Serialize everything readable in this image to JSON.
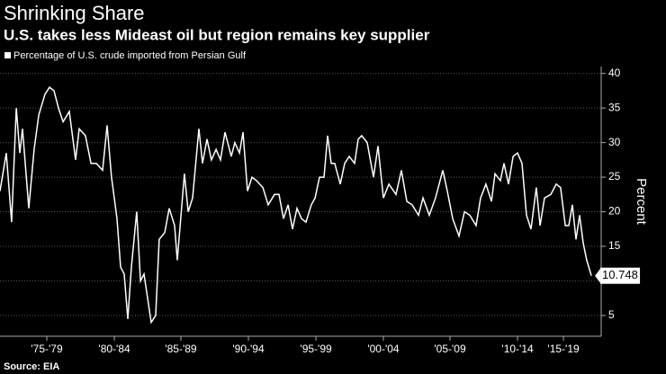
{
  "chart_data": {
    "type": "line",
    "title": "Shrinking Share",
    "subtitle": "U.S. takes less Mideast oil but region remains key supplier",
    "y_label": "Percent",
    "source": "Source: EIA",
    "grid": true,
    "xlim": [
      1974,
      2021
    ],
    "ylim": [
      2,
      41
    ],
    "yticks": [
      5,
      10,
      15,
      20,
      25,
      30,
      35,
      40
    ],
    "xticks": [
      {
        "value": 1977.66,
        "label": "'75-'79"
      },
      {
        "value": 1982.94,
        "label": "'80-'84"
      },
      {
        "value": 1988.14,
        "label": "'85-'89"
      },
      {
        "value": 1993.42,
        "label": "'90-'94"
      },
      {
        "value": 1998.7,
        "label": "'95-'99"
      },
      {
        "value": 2003.97,
        "label": "'00-'04"
      },
      {
        "value": 2009.18,
        "label": "'05-'09"
      },
      {
        "value": 2014.46,
        "label": "'10-'14"
      },
      {
        "value": 2018.05,
        "label": "'15-'19"
      }
    ],
    "x": [
      1974.0,
      1974.49,
      1974.91,
      1975.27,
      1975.55,
      1975.76,
      1976.25,
      1976.67,
      1977.03,
      1977.52,
      1977.87,
      1978.22,
      1978.57,
      1978.93,
      1979.42,
      1979.91,
      1980.19,
      1980.68,
      1981.11,
      1981.53,
      1982.02,
      1982.37,
      1982.72,
      1983.15,
      1983.43,
      1983.71,
      1983.99,
      1984.27,
      1984.69,
      1984.98,
      1985.26,
      1985.82,
      1986.17,
      1986.45,
      1986.88,
      1987.23,
      1987.65,
      1987.86,
      1988.42,
      1988.71,
      1989.06,
      1989.55,
      1989.83,
      1990.18,
      1990.53,
      1990.89,
      1991.24,
      1991.59,
      1992.08,
      1992.36,
      1992.72,
      1993.0,
      1993.35,
      1993.7,
      1994.05,
      1994.55,
      1994.97,
      1995.46,
      1995.81,
      1996.16,
      1996.52,
      1996.87,
      1997.22,
      1997.57,
      1997.92,
      1998.34,
      1998.63,
      1998.98,
      1999.33,
      1999.61,
      1999.89,
      2000.17,
      2000.6,
      2000.95,
      2001.3,
      2001.72,
      2002.0,
      2002.28,
      2002.71,
      2003.2,
      2003.55,
      2003.97,
      2004.4,
      2004.96,
      2005.38,
      2005.8,
      2006.22,
      2006.72,
      2007.07,
      2007.56,
      2008.05,
      2008.62,
      2008.97,
      2009.39,
      2009.88,
      2010.31,
      2010.73,
      2011.22,
      2011.57,
      2011.99,
      2012.42,
      2012.7,
      2013.12,
      2013.4,
      2013.75,
      2014.11,
      2014.46,
      2014.81,
      2015.16,
      2015.51,
      2015.93,
      2016.22,
      2016.57,
      2017.06,
      2017.48,
      2017.83,
      2018.19,
      2018.47,
      2018.75,
      2019.03,
      2019.31,
      2019.59,
      2019.87,
      2020.23
    ],
    "series": [
      {
        "name": "Percentage of U.S. crude imported from Persian Gulf",
        "color": "#ffffff",
        "values": [
          23,
          28.5,
          18.5,
          35,
          28.5,
          32,
          20.5,
          29,
          34,
          37,
          38,
          37.5,
          35,
          33,
          34.5,
          27.5,
          32,
          31,
          27,
          27,
          26,
          32.5,
          25,
          19,
          12,
          11,
          4.5,
          12,
          20,
          10,
          11,
          4,
          5,
          16,
          17,
          20.5,
          18,
          13,
          25.5,
          20,
          22,
          32,
          27,
          30.5,
          27.5,
          29,
          27.5,
          31.5,
          28,
          30,
          28.5,
          31.5,
          23,
          25,
          24.5,
          23.5,
          21,
          22.5,
          22.5,
          19,
          21,
          17.5,
          20.5,
          19,
          18.5,
          21,
          22,
          25,
          25,
          31,
          27,
          27,
          24,
          27,
          28,
          27,
          30.5,
          31,
          30,
          25,
          29.5,
          22,
          24,
          22.5,
          26,
          21.5,
          21,
          19.5,
          22,
          19.5,
          22,
          26,
          23,
          19,
          16.5,
          20,
          19.5,
          18,
          22,
          24,
          21.5,
          25.5,
          24.5,
          27,
          24,
          28,
          28.5,
          27,
          19.5,
          17.5,
          23.5,
          18,
          22,
          22.5,
          24,
          23.5,
          18,
          18,
          21,
          16,
          19.5,
          15.5,
          13,
          10.748
        ]
      }
    ]
  }
}
